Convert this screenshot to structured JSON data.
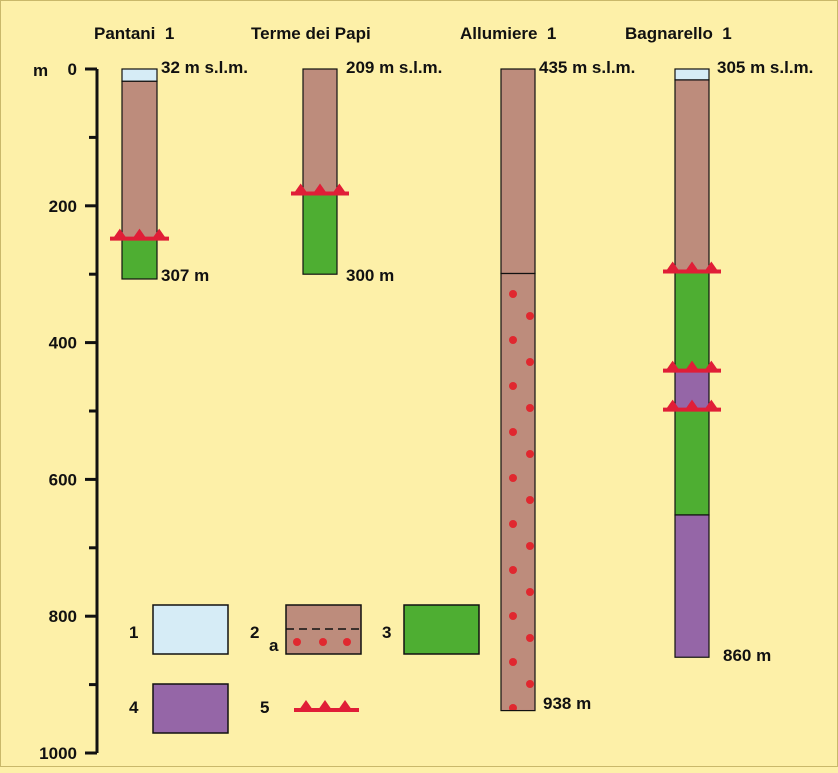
{
  "axis": {
    "unit": "m",
    "ticks": [
      {
        "value": 0,
        "label": "0"
      },
      {
        "value": 200,
        "label": "200"
      },
      {
        "value": 400,
        "label": "400"
      },
      {
        "value": 600,
        "label": "600"
      },
      {
        "value": 800,
        "label": "800"
      },
      {
        "value": 1000,
        "label": "1000"
      }
    ],
    "minor_ticks": [
      100,
      300,
      500,
      700,
      900
    ]
  },
  "colors": {
    "background": "#fdf0a8",
    "unit_1": "#d6ecf6",
    "unit_2": "#bd8c7c",
    "unit_3": "#4eae32",
    "unit_4": "#9566a7",
    "thrust": "#e01e37",
    "dots": "#e0282f"
  },
  "wells": [
    {
      "name": "Pantani  1",
      "elevation": "32 m s.l.m.",
      "td": 307,
      "td_label": "307 m",
      "layers": [
        {
          "top": 0,
          "bottom": 18,
          "unit": "1"
        },
        {
          "top": 18,
          "bottom": 248,
          "unit": "2"
        },
        {
          "top": 248,
          "bottom": 307,
          "unit": "3"
        }
      ],
      "thrusts": [
        248
      ]
    },
    {
      "name": "Terme dei Papi",
      "elevation": "209 m s.l.m.",
      "td": 300,
      "td_label": "300 m",
      "layers": [
        {
          "top": 0,
          "bottom": 182,
          "unit": "2"
        },
        {
          "top": 182,
          "bottom": 300,
          "unit": "3"
        }
      ],
      "thrusts": [
        182
      ]
    },
    {
      "name": "Allumiere  1",
      "elevation": "435 m s.l.m.",
      "td": 938,
      "td_label": "938 m",
      "layers": [
        {
          "top": 0,
          "bottom": 299,
          "unit": "2"
        },
        {
          "top": 299,
          "bottom": 938,
          "unit": "2a"
        }
      ],
      "thrusts": []
    },
    {
      "name": "Bagnarello  1",
      "elevation": "305 m s.l.m.",
      "td": 860,
      "td_label": "860 m",
      "layers": [
        {
          "top": 0,
          "bottom": 16,
          "unit": "1"
        },
        {
          "top": 16,
          "bottom": 296,
          "unit": "2"
        },
        {
          "top": 296,
          "bottom": 441,
          "unit": "3"
        },
        {
          "top": 441,
          "bottom": 498,
          "unit": "4"
        },
        {
          "top": 498,
          "bottom": 652,
          "unit": "3"
        },
        {
          "top": 652,
          "bottom": 860,
          "unit": "4"
        }
      ],
      "thrusts": [
        296,
        441,
        498
      ]
    }
  ],
  "legend": [
    {
      "number": "1",
      "unit": "1"
    },
    {
      "number": "2",
      "unit": "2",
      "sub": "a"
    },
    {
      "number": "3",
      "unit": "3"
    },
    {
      "number": "4",
      "unit": "4"
    },
    {
      "number": "5",
      "unit": "thrust"
    }
  ]
}
